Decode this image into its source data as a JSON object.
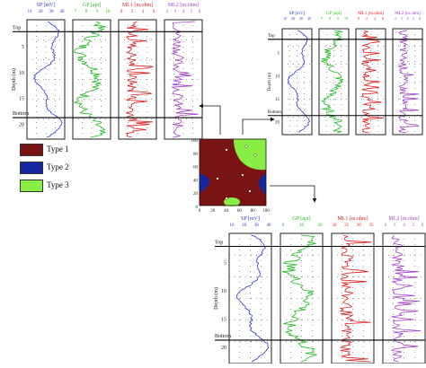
{
  "legend": [
    {
      "label": "Type 1",
      "color": "#7a1414"
    },
    {
      "label": "Type 2",
      "color": "#1427a0"
    },
    {
      "label": "Type 3",
      "color": "#88ee44"
    }
  ],
  "depth_label": "Depth (m)",
  "top_label": "Top",
  "bottom_label": "Bottom",
  "logs": [
    {
      "id": "sp",
      "header": "SP [mV]",
      "color": "#2e36d6",
      "ticks": [
        "10",
        "20",
        "30",
        "40"
      ]
    },
    {
      "id": "gp",
      "header": "GP [api]",
      "color": "#22bb22",
      "ticks": [
        "7",
        "8",
        "9",
        "10"
      ]
    },
    {
      "id": "ml1",
      "header": "ML1 [m.ohm]",
      "color": "#e02020",
      "ticks": [
        "0",
        "2",
        "4",
        "6"
      ]
    },
    {
      "id": "ml2",
      "header": "ML2 [m.ohm]",
      "color": "#a044cc",
      "ticks": [
        "2",
        "3",
        "4",
        "5",
        "6"
      ]
    }
  ],
  "panel_bottom_ticks": {
    "sp": [
      "10",
      "20",
      "30",
      "40"
    ],
    "gp": [
      "0",
      "10",
      "20"
    ],
    "ml1": [
      "20",
      "25",
      "30",
      "35"
    ],
    "ml2": [
      "2",
      "3",
      "4",
      "5",
      "6"
    ]
  },
  "depth_ticks": [
    "5",
    "10",
    "15",
    "20"
  ],
  "map": {
    "y_ticks": [
      "100",
      "80",
      "60",
      "40",
      "20",
      "0"
    ],
    "x_ticks": [
      "0",
      "20",
      "40",
      "60",
      "80",
      "100"
    ]
  }
}
